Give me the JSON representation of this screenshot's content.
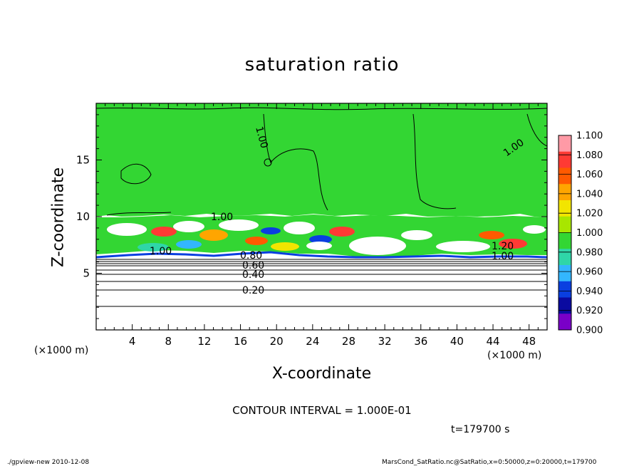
{
  "chart_data": {
    "type": "heatmap",
    "title": "saturation ratio",
    "xlabel": "X-coordinate",
    "ylabel": "Z-coordinate",
    "x_unit": "(×1000 m)",
    "y_unit": "(×1000 m)",
    "xlim": [
      0,
      50
    ],
    "ylim": [
      0,
      20
    ],
    "x_ticks": [
      "4",
      "8",
      "12",
      "16",
      "20",
      "24",
      "28",
      "32",
      "36",
      "40",
      "44",
      "48"
    ],
    "y_ticks": [
      "5",
      "10",
      "15"
    ],
    "colorbar": {
      "levels": [
        "1.100",
        "1.080",
        "1.060",
        "1.040",
        "1.020",
        "1.000",
        "0.980",
        "0.960",
        "0.940",
        "0.920",
        "0.900"
      ],
      "colors": [
        "#ff9aa6",
        "#ff3a34",
        "#ff5a00",
        "#ffa500",
        "#f2e500",
        "#a8e600",
        "#33d633",
        "#2fd6a8",
        "#33b6ff",
        "#0a3fe0",
        "#0a0aa0",
        "#7a00c8"
      ]
    },
    "contour_labels": [
      "1.00",
      "1.00",
      "1.00",
      "1.00",
      "0.80",
      "0.60",
      "0.40",
      "0.20",
      "1.20",
      "1.00"
    ],
    "contour_interval": "CONTOUR INTERVAL = 1.000E-01",
    "time_label": "t=179700 s"
  },
  "footer": {
    "left": "./gpview-new   2010-12-08",
    "right": "MarsCond_SatRatio.nc@SatRatio,x=0:50000,z=0:20000,t=179700"
  }
}
